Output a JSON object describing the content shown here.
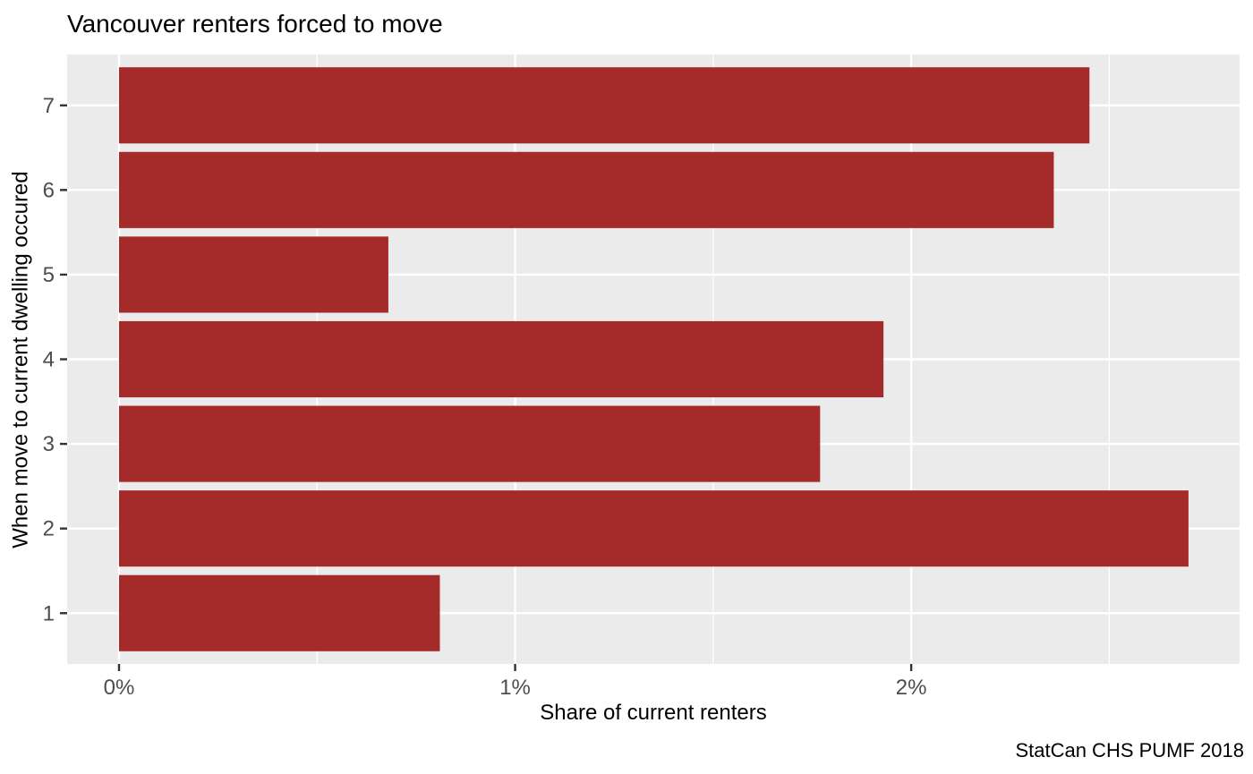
{
  "title": "Vancouver renters forced to move",
  "caption": "StatCan CHS PUMF 2018",
  "chart_data": {
    "type": "bar",
    "orientation": "horizontal",
    "title": "Vancouver renters forced to move",
    "xlabel": "Share of current renters",
    "ylabel": "When move to current dwelling occured",
    "caption": "StatCan CHS PUMF 2018",
    "categories_top_to_bottom": [
      "7",
      "6",
      "5",
      "4",
      "3",
      "2",
      "1"
    ],
    "values_percent_top_to_bottom": [
      2.45,
      2.36,
      0.68,
      1.93,
      1.77,
      2.7,
      0.81
    ],
    "unit": "%",
    "x_ticks": [
      {
        "value": 0,
        "label": "0%"
      },
      {
        "value": 1,
        "label": "1%"
      },
      {
        "value": 2,
        "label": "2%"
      }
    ],
    "x_minor_ticks": [
      0.5,
      1.5,
      2.5
    ],
    "xlim": [
      -0.131,
      2.829
    ],
    "grid": "major-and-minor-x, major-y",
    "legend": "none",
    "colors": {
      "bar": "#A52A2A",
      "panel_bg": "#EBEBEB",
      "grid": "#FFFFFF",
      "axis_text": "#4D4D4D",
      "tick_mark": "#333333",
      "text": "#000000",
      "background": "#FFFFFF"
    }
  }
}
